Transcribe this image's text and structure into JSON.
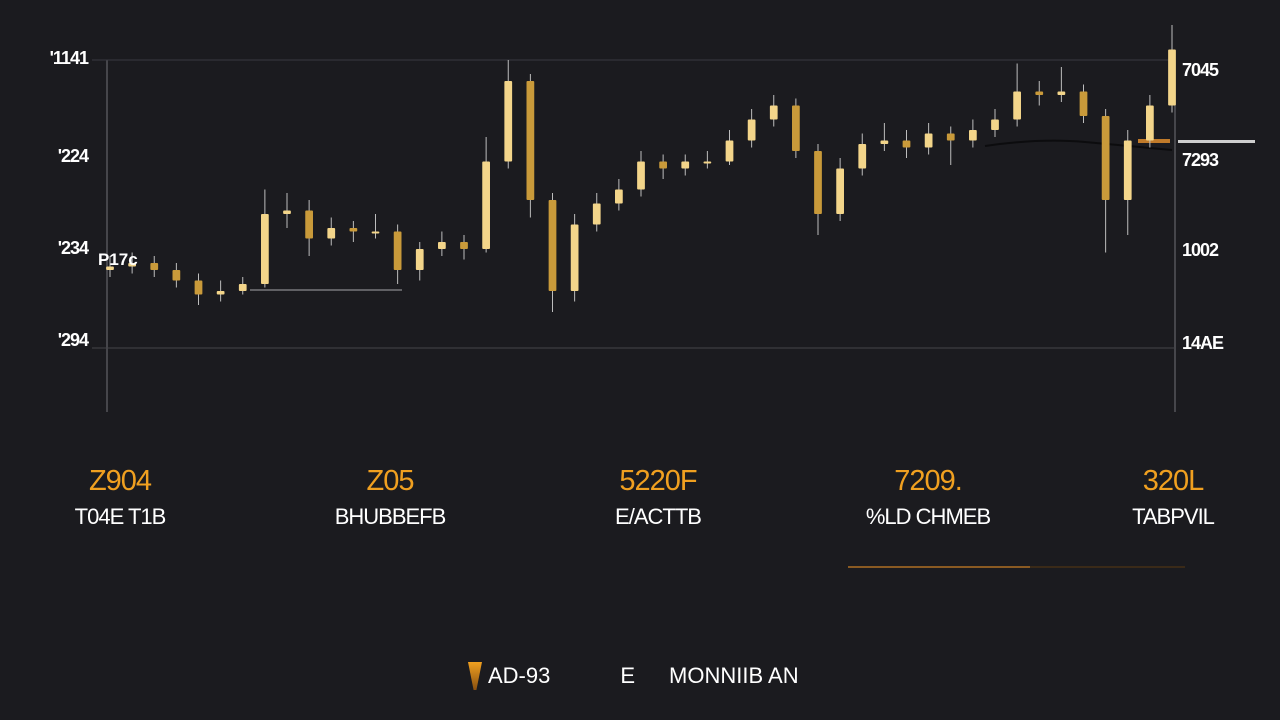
{
  "chart_data": {
    "type": "candlestick",
    "title": "",
    "xlabel": "",
    "ylabel": "",
    "ylim": [
      0,
      110
    ],
    "grid": true,
    "y_tick_labels_left": [
      "'1141",
      "'224",
      "'234",
      "'294"
    ],
    "y_tick_labels_right": [
      "7045",
      "7293",
      "1002",
      "14AE"
    ],
    "inline_label": "P17c",
    "colors": {
      "bull": "#f3d58a",
      "bear": "#c99a3a",
      "wick": "#bdbdbd",
      "accent": "#f0a020",
      "background": "#1b1b1f"
    },
    "ohlc": [
      [
        40,
        44,
        38,
        41
      ],
      [
        41,
        45,
        39,
        42
      ],
      [
        42,
        44,
        38,
        40
      ],
      [
        40,
        42,
        35,
        37
      ],
      [
        37,
        39,
        30,
        33
      ],
      [
        33,
        37,
        31,
        34
      ],
      [
        34,
        38,
        33,
        36
      ],
      [
        36,
        63,
        35,
        56
      ],
      [
        56,
        62,
        52,
        57
      ],
      [
        57,
        60,
        44,
        49
      ],
      [
        49,
        55,
        47,
        52
      ],
      [
        52,
        54,
        48,
        51
      ],
      [
        51,
        56,
        49,
        51
      ],
      [
        51,
        53,
        36,
        40
      ],
      [
        40,
        48,
        37,
        46
      ],
      [
        46,
        51,
        44,
        48
      ],
      [
        48,
        50,
        43,
        46
      ],
      [
        46,
        78,
        45,
        71
      ],
      [
        71,
        100,
        69,
        94
      ],
      [
        94,
        96,
        55,
        60
      ],
      [
        60,
        62,
        28,
        34
      ],
      [
        34,
        56,
        31,
        53
      ],
      [
        53,
        62,
        51,
        59
      ],
      [
        59,
        66,
        57,
        63
      ],
      [
        63,
        74,
        61,
        71
      ],
      [
        71,
        73,
        66,
        69
      ],
      [
        69,
        73,
        67,
        71
      ],
      [
        71,
        74,
        69,
        71
      ],
      [
        71,
        80,
        70,
        77
      ],
      [
        77,
        86,
        75,
        83
      ],
      [
        83,
        90,
        81,
        87
      ],
      [
        87,
        89,
        72,
        74
      ],
      [
        74,
        76,
        50,
        56
      ],
      [
        56,
        72,
        54,
        69
      ],
      [
        69,
        79,
        67,
        76
      ],
      [
        76,
        82,
        74,
        77
      ],
      [
        77,
        80,
        72,
        75
      ],
      [
        75,
        82,
        73,
        79
      ],
      [
        79,
        81,
        70,
        77
      ],
      [
        77,
        83,
        75,
        80
      ],
      [
        80,
        86,
        78,
        83
      ],
      [
        83,
        99,
        81,
        91
      ],
      [
        91,
        94,
        87,
        90
      ],
      [
        90,
        98,
        88,
        91
      ],
      [
        91,
        93,
        82,
        84
      ],
      [
        84,
        86,
        45,
        60
      ],
      [
        60,
        80,
        50,
        77
      ],
      [
        77,
        90,
        75,
        87
      ],
      [
        87,
        110,
        85,
        103
      ]
    ]
  },
  "stats": [
    {
      "value": "Z904",
      "label": "T04E T1B"
    },
    {
      "value": "Z05",
      "label": "BHUBBEFB"
    },
    {
      "value": "5220F",
      "label": "E/ACTTB"
    },
    {
      "value": "7209.",
      "label": "%LD CHMEB"
    },
    {
      "value": "320L",
      "label": "TABPVIL"
    }
  ],
  "legend": {
    "item1": "AD-93",
    "item2": "E",
    "item3": "MONNIIB AN"
  }
}
